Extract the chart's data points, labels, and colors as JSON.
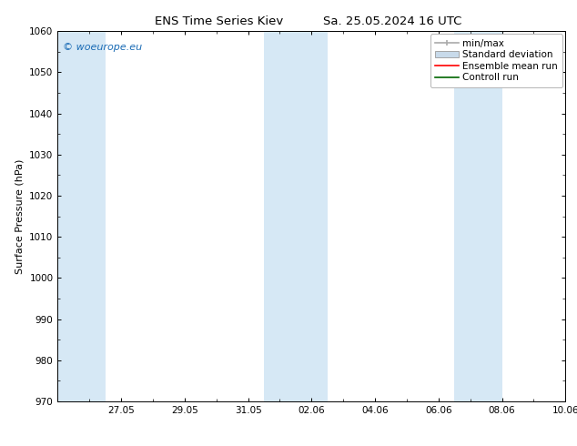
{
  "title_left": "ENS Time Series Kiev",
  "title_right": "Sa. 25.05.2024 16 UTC",
  "ylabel": "Surface Pressure (hPa)",
  "ylim": [
    970,
    1060
  ],
  "yticks": [
    970,
    980,
    990,
    1000,
    1010,
    1020,
    1030,
    1040,
    1050,
    1060
  ],
  "xlim": [
    0.0,
    16.0
  ],
  "xtick_labels": [
    "27.05",
    "29.05",
    "31.05",
    "02.06",
    "04.06",
    "06.06",
    "08.06",
    "10.06"
  ],
  "xtick_positions": [
    2,
    4,
    6,
    8,
    10,
    12,
    14,
    16
  ],
  "shaded_bands": [
    {
      "x_start": 0.0,
      "x_end": 1.5,
      "color": "#d6e8f5"
    },
    {
      "x_start": 6.5,
      "x_end": 8.5,
      "color": "#d6e8f5"
    },
    {
      "x_start": 12.5,
      "x_end": 14.0,
      "color": "#d6e8f5"
    }
  ],
  "watermark_text": "© woeurope.eu",
  "watermark_color": "#1a6bb5",
  "bg_color": "#ffffff",
  "plot_bg_color": "#ffffff",
  "legend_entries": [
    {
      "label": "min/max",
      "color": "#aaaaaa",
      "style": "errorbar"
    },
    {
      "label": "Standard deviation",
      "color": "#c8daea",
      "style": "box"
    },
    {
      "label": "Ensemble mean run",
      "color": "#ff0000",
      "style": "line"
    },
    {
      "label": "Controll run",
      "color": "#006600",
      "style": "line"
    }
  ],
  "title_fontsize": 9.5,
  "axis_label_fontsize": 8,
  "tick_fontsize": 7.5,
  "legend_fontsize": 7.5,
  "watermark_fontsize": 8
}
